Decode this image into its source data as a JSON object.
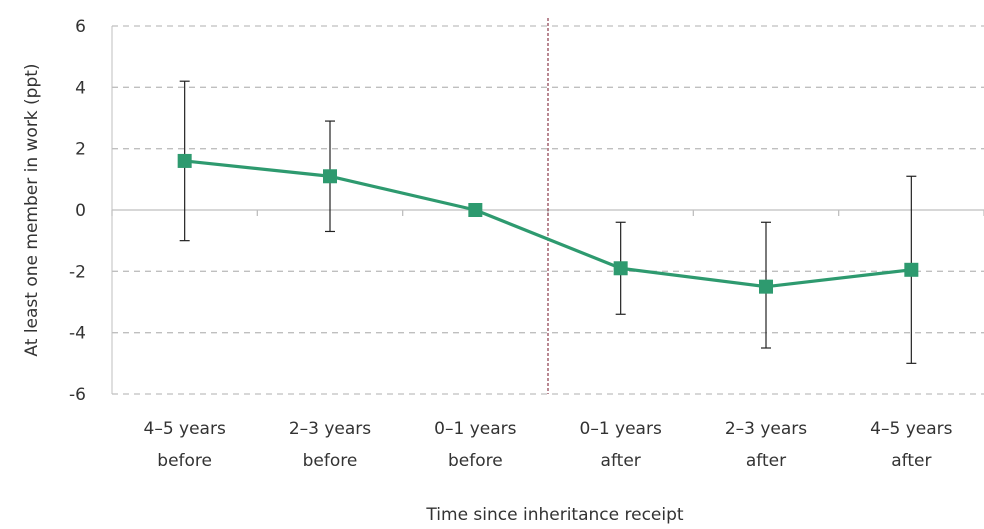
{
  "chart_data": {
    "type": "line",
    "title": "",
    "xlabel": "Time since inheritance receipt",
    "ylabel": "At least one member in work (ppt)",
    "categories": [
      [
        "4–5 years",
        "before"
      ],
      [
        "2–3 years",
        "before"
      ],
      [
        "0–1 years",
        "before"
      ],
      [
        "0–1 years",
        "after"
      ],
      [
        "2–3 years",
        "after"
      ],
      [
        "4–5 years",
        "after"
      ]
    ],
    "ylim": [
      -6,
      6
    ],
    "yticks": [
      6,
      4,
      2,
      0,
      -2,
      -4,
      -6
    ],
    "ytick_labels": [
      "6",
      "4",
      "2",
      "0",
      "-2",
      "-4",
      "-6"
    ],
    "grid": "horizontal dashed",
    "series": [
      {
        "values": [
          1.6,
          1.1,
          0.0,
          -1.9,
          -2.5,
          -1.95
        ],
        "error_low": [
          -1.0,
          -0.7,
          0.0,
          -3.4,
          -4.5,
          -5.0
        ],
        "error_high": [
          4.2,
          2.9,
          0.0,
          -0.4,
          -0.4,
          1.1
        ]
      }
    ],
    "vertical_reference_between": [
      "0–1 years before",
      "0–1 years after"
    ],
    "colors": {
      "series": "#2e9a6f",
      "error_bar": "#222222",
      "grid": "#bfbfbf",
      "zero_axis": "#bfbfbf",
      "reference_line": "#8b3a4a",
      "text": "#333333"
    }
  }
}
